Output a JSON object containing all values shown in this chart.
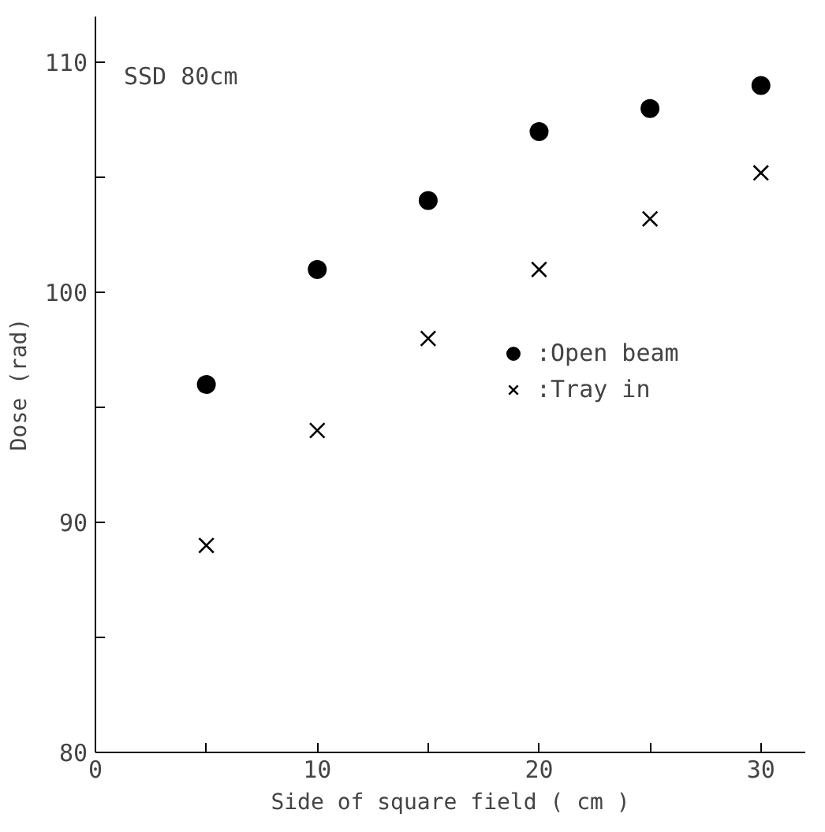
{
  "chart_data": {
    "type": "scatter",
    "xlabel": "Side of square field ( cm )",
    "ylabel": "Dose (rad)",
    "annotations": [
      "SSD 80cm"
    ],
    "x": [
      5,
      10,
      15,
      20,
      25,
      30
    ],
    "series": [
      {
        "name": ":Open beam",
        "color": "#000000",
        "marker": "circle",
        "values": [
          96,
          101,
          104,
          107,
          108,
          109
        ]
      },
      {
        "name": ":Tray in",
        "color": "#000000",
        "marker": "x",
        "values": [
          89,
          94,
          98,
          101,
          103.2,
          105.2
        ]
      }
    ],
    "xlim": [
      0,
      32
    ],
    "ylim": [
      80,
      112
    ],
    "xticks": [
      0,
      {
        "value": 5,
        "label": null
      },
      10,
      {
        "value": 15,
        "label": null
      },
      20,
      {
        "value": 25,
        "label": null
      },
      30
    ],
    "yticks": [
      80,
      {
        "value": 85,
        "label": null
      },
      90,
      {
        "value": 95,
        "label": null
      },
      100,
      {
        "value": 105,
        "label": null
      },
      110
    ],
    "grid": false,
    "legend": "right"
  }
}
